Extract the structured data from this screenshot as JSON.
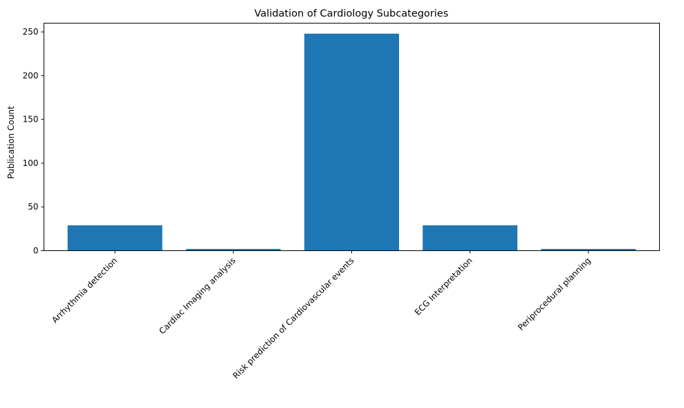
{
  "chart_data": {
    "type": "bar",
    "title": "Validation of Cardiology Subcategories",
    "xlabel": "",
    "ylabel": "Publication Count",
    "categories": [
      "Arrhythmia detection",
      "Cardiac Imaging analysis",
      "Risk prediction of Cardiovascular events",
      "ECG Interpretation",
      "Periprocedural planning"
    ],
    "values": [
      29,
      2,
      248,
      29,
      2
    ],
    "ylim": [
      0,
      260
    ],
    "yticks": [
      0,
      50,
      100,
      150,
      200,
      250
    ],
    "bar_color": "#1f77b4",
    "grid": false,
    "legend": "none"
  }
}
